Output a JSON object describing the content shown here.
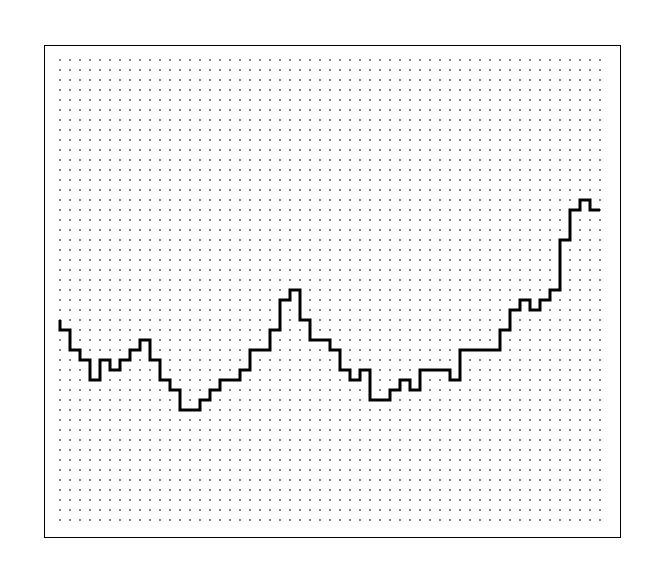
{
  "chart_data": {
    "type": "line",
    "step": "post",
    "color": "#000000",
    "grid": true,
    "grid_style": "dotted",
    "xlim": [
      -1.6,
      56
    ],
    "ylim": [
      -1.7,
      47.5
    ],
    "xticks": [
      0,
      1,
      2,
      3,
      4,
      5,
      6,
      7,
      8,
      9,
      10,
      11,
      12,
      13,
      14,
      15,
      16,
      17,
      18,
      19,
      20,
      21,
      22,
      23,
      24,
      25,
      26,
      27,
      28,
      29,
      30,
      31,
      32,
      33,
      34,
      35,
      36,
      37,
      38,
      39,
      40,
      41,
      42,
      43,
      44,
      45,
      46,
      47,
      48,
      49,
      50,
      51,
      52,
      53,
      54
    ],
    "yticks": [
      0,
      1,
      2,
      3,
      4,
      5,
      6,
      7,
      8,
      9,
      10,
      11,
      12,
      13,
      14,
      15,
      16,
      17,
      18,
      19,
      20,
      21,
      22,
      23,
      24,
      25,
      26,
      27,
      28,
      29,
      30,
      31,
      32,
      33,
      34,
      35,
      36,
      37,
      38,
      39,
      40,
      41,
      42,
      43,
      44,
      45,
      46
    ],
    "x": [
      0,
      0,
      1,
      2,
      3,
      4,
      5,
      6,
      7,
      8,
      9,
      10,
      11,
      12,
      14,
      15,
      16,
      18,
      19,
      21,
      22,
      23,
      24,
      25,
      27,
      28,
      29,
      30,
      31,
      33,
      34,
      35,
      36,
      39,
      40,
      44,
      45,
      46,
      47,
      48,
      49,
      50,
      51,
      52,
      53,
      54
    ],
    "values": [
      20,
      19,
      17,
      16,
      14,
      16,
      15,
      16,
      17,
      18,
      16,
      14,
      13,
      11,
      12,
      13,
      14,
      15,
      17,
      19,
      22,
      23,
      20,
      18,
      17,
      15,
      14,
      15,
      12,
      13,
      14,
      13,
      15,
      14,
      17,
      19,
      21,
      22,
      21,
      22,
      23,
      28,
      31,
      32,
      31,
      31
    ]
  }
}
